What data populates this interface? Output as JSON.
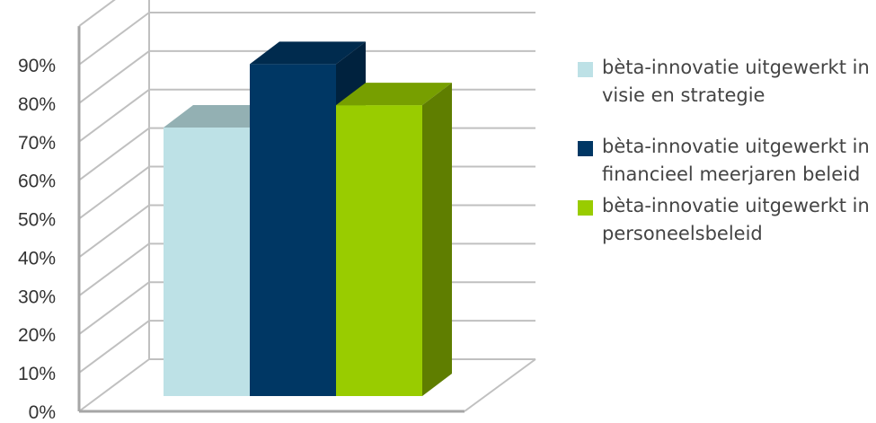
{
  "chart_data": {
    "type": "bar",
    "style": "3d-clustered-column",
    "categories": [
      ""
    ],
    "series": [
      {
        "name": "bèta-innovatie uitgewerkt in visie en strategie",
        "values": [
          0.72
        ],
        "color": "#BDE1E6"
      },
      {
        "name": "bèta-innovatie uitgewerkt in financieel meerjaren beleid",
        "values": [
          0.89
        ],
        "color": "#003764"
      },
      {
        "name": "bèta-innovatie uitgewerkt in personeelsbeleid",
        "values": [
          0.78
        ],
        "color": "#99CC00"
      }
    ],
    "yticks": [
      "0%",
      "10%",
      "20%",
      "30%",
      "40%",
      "50%",
      "60%",
      "70%",
      "80%",
      "90%"
    ],
    "ylim": [
      0,
      1
    ],
    "grid": true,
    "legend_position": "right",
    "title": "",
    "xlabel": "",
    "ylabel": ""
  },
  "legend": {
    "items": [
      {
        "text": "bèta-innovatie uitgewerkt in visie en strategie",
        "color": "#BDE1E6"
      },
      {
        "text": "bèta-innovatie uitgewerkt in financieel meerjaren beleid",
        "color": "#003764"
      },
      {
        "text": "bèta-innovatie uitgewerkt in personeelsbeleid",
        "color": "#99CC00"
      }
    ]
  }
}
